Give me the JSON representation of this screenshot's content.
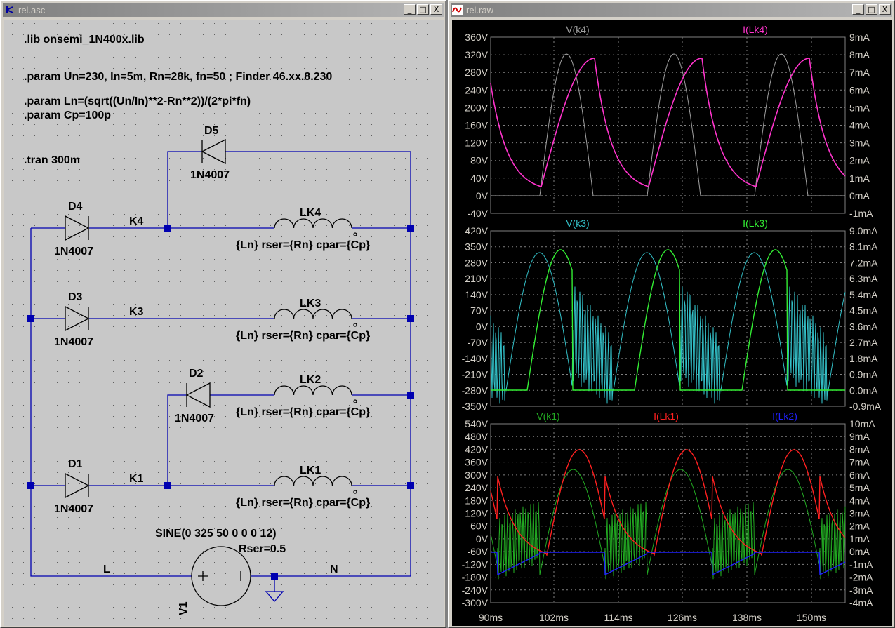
{
  "windows": {
    "schematic_title": "rel.asc",
    "plot_title": "rel.raw",
    "buttons": {
      "minimize": "_",
      "maximize": "□",
      "close": "X"
    }
  },
  "schematic": {
    "directives": [
      ".lib onsemi_1N400x.lib",
      ".param Un=230, In=5m, Rn=28k, fn=50 ; Finder 46.xx.8.230",
      ".param Ln=(sqrt((Un/In)**2-Rn**2))/(2*pi*fn)",
      ".param Cp=100p",
      ".tran 300m"
    ],
    "diodes": [
      {
        "name": "D5",
        "model": "1N4007"
      },
      {
        "name": "D4",
        "model": "1N4007"
      },
      {
        "name": "D3",
        "model": "1N4007"
      },
      {
        "name": "D2",
        "model": "1N4007"
      },
      {
        "name": "D1",
        "model": "1N4007"
      }
    ],
    "inductors": [
      {
        "name": "LK4",
        "value": "{Ln} rser={Rn} cpar={Cp}"
      },
      {
        "name": "LK3",
        "value": "{Ln} rser={Rn} cpar={Cp}"
      },
      {
        "name": "LK2",
        "value": "{Ln} rser={Rn} cpar={Cp}"
      },
      {
        "name": "LK1",
        "value": "{Ln} rser={Rn} cpar={Cp}"
      }
    ],
    "net_labels": {
      "k4": "K4",
      "k3": "K3",
      "k1": "K1",
      "l": "L",
      "n": "N"
    },
    "source": {
      "name": "V1",
      "value": "SINE(0 325 50 0 0 0 12)",
      "rser": "Rser=0.5"
    }
  },
  "plot": {
    "colors": {
      "bg": "#000000",
      "grid": "#808080",
      "axis_text": "#d4d0c8",
      "v_k4": "#a0a0a0",
      "i_lk4": "#ff33cc",
      "v_k3": "#33c0c8",
      "i_lk3": "#33ee33",
      "v_k1": "#22aa22",
      "i_lk1": "#ff2020",
      "i_lk2": "#2020ff"
    },
    "x_ticks": [
      "90ms",
      "102ms",
      "114ms",
      "126ms",
      "138ms",
      "150ms"
    ],
    "panes": [
      {
        "traces": [
          "V(k4)",
          "I(Lk4)"
        ],
        "left_ticks": [
          "360V",
          "320V",
          "280V",
          "240V",
          "200V",
          "160V",
          "120V",
          "80V",
          "40V",
          "0V",
          "-40V"
        ],
        "right_ticks": [
          "9mA",
          "8mA",
          "7mA",
          "6mA",
          "5mA",
          "4mA",
          "3mA",
          "2mA",
          "1mA",
          "0mA",
          "-1mA"
        ]
      },
      {
        "traces": [
          "V(k3)",
          "I(Lk3)"
        ],
        "left_ticks": [
          "420V",
          "350V",
          "280V",
          "210V",
          "140V",
          "70V",
          "0V",
          "-70V",
          "-140V",
          "-210V",
          "-280V",
          "-350V"
        ],
        "right_ticks": [
          "9.0mA",
          "8.1mA",
          "7.2mA",
          "6.3mA",
          "5.4mA",
          "4.5mA",
          "3.6mA",
          "2.7mA",
          "1.8mA",
          "0.9mA",
          "0.0mA",
          "-0.9mA"
        ]
      },
      {
        "traces": [
          "V(k1)",
          "I(Lk1)",
          "I(Lk2)"
        ],
        "left_ticks": [
          "540V",
          "480V",
          "420V",
          "360V",
          "300V",
          "240V",
          "180V",
          "120V",
          "60V",
          "0V",
          "-60V",
          "-120V",
          "-180V",
          "-240V",
          "-300V"
        ],
        "right_ticks": [
          "10mA",
          "9mA",
          "8mA",
          "7mA",
          "6mA",
          "5mA",
          "4mA",
          "3mA",
          "2mA",
          "1mA",
          "0mA",
          "-1mA",
          "-2mA",
          "-3mA",
          "-4mA"
        ]
      }
    ]
  }
}
